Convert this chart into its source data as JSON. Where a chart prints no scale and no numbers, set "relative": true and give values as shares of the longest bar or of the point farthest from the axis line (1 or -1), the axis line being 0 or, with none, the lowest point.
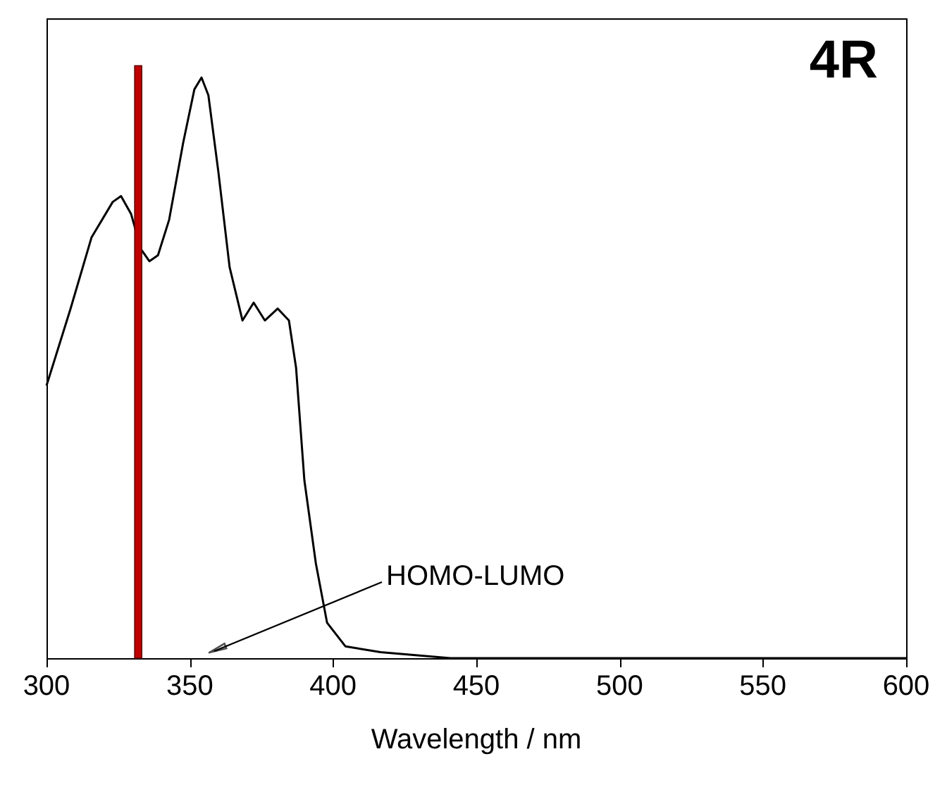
{
  "chart_data": {
    "type": "line",
    "title": "4R",
    "xlabel": "Wavelength / nm",
    "relative": true,
    "xlim": [
      300,
      600
    ],
    "xticks": [
      300,
      350,
      400,
      450,
      500,
      550,
      600
    ],
    "grid": false,
    "series": [
      {
        "color": "#000000",
        "x": [
          300,
          308.4,
          315.7,
          323.1,
          326,
          329.5,
          333,
          335.9,
          338.9,
          342.8,
          347.7,
          351.6,
          354.1,
          356.5,
          360,
          363.9,
          368.4,
          372.3,
          376.2,
          380.7,
          384.6,
          387.1,
          390,
          394,
          397.9,
          404.3,
          416.6,
          441,
          470.7,
          600
        ],
        "values": [
          0.46,
          0.59,
          0.71,
          0.77,
          0.78,
          0.75,
          0.69,
          0.67,
          0.68,
          0.74,
          0.87,
          0.96,
          0.98,
          0.95,
          0.82,
          0.66,
          0.57,
          0.6,
          0.57,
          0.59,
          0.57,
          0.49,
          0.3,
          0.16,
          0.06,
          0.02,
          0.01,
          0.0,
          0.0,
          0.0
        ]
      },
      {
        "type": "bar",
        "color": "#c00000",
        "x": [
          332
        ],
        "values": [
          1
        ]
      }
    ],
    "annotations": [
      "HOMO-LUMO"
    ]
  }
}
